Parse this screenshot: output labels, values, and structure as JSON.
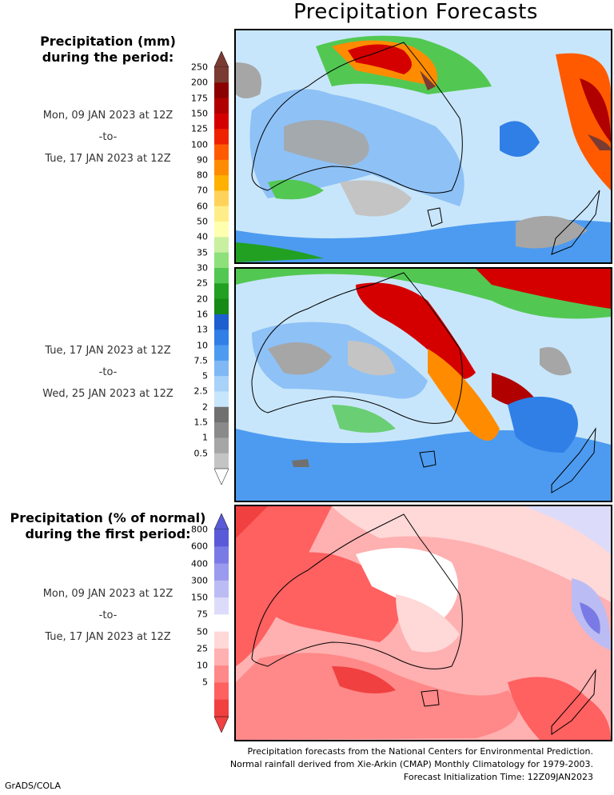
{
  "title": "Precipitation Forecasts",
  "legend_mm": {
    "heading_line1": "Precipitation (mm)",
    "heading_line2": "during the period:",
    "ticks": [
      "250",
      "200",
      "175",
      "150",
      "125",
      "100",
      "90",
      "80",
      "70",
      "60",
      "50",
      "40",
      "35",
      "30",
      "25",
      "20",
      "16",
      "13",
      "10",
      "7.5",
      "5",
      "2.5",
      "2",
      "1.5",
      "1",
      "0.5"
    ],
    "colors": [
      "#7a3b32",
      "#8b0000",
      "#b00000",
      "#d40000",
      "#ee2200",
      "#ff5a00",
      "#ff8c00",
      "#ffb000",
      "#ffd35a",
      "#ffee88",
      "#ffffb0",
      "#c8f0a0",
      "#8ee07a",
      "#52c852",
      "#22a022",
      "#158b15",
      "#1d5fcf",
      "#2f7fe6",
      "#4d9bf0",
      "#7fb8f5",
      "#a8d2f8",
      "#c8e6fb",
      "#707070",
      "#8a8a8a",
      "#a6a6a6",
      "#c4c4c4"
    ]
  },
  "period1": {
    "start": "Mon, 09 JAN 2023 at 12Z",
    "sep": "-to-",
    "end": "Tue, 17 JAN 2023 at 12Z"
  },
  "period2": {
    "start": "Tue, 17 JAN 2023 at 12Z",
    "sep": "-to-",
    "end": "Wed, 25 JAN 2023 at 12Z"
  },
  "legend_pct": {
    "heading_line1": "Precipitation (% of normal)",
    "heading_line2": "during the first period:",
    "ticks": [
      "800",
      "600",
      "400",
      "300",
      "150",
      "75",
      "50",
      "25",
      "10",
      "5"
    ],
    "colors": [
      "#5a5ad8",
      "#7a7ae6",
      "#9a9aee",
      "#bcbcf4",
      "#dcdcfa",
      "#ffffff",
      "#ffd8d8",
      "#ffb0b0",
      "#ff8888",
      "#ff6060",
      "#f04040"
    ]
  },
  "period3": {
    "start": "Mon, 09 JAN 2023 at 12Z",
    "sep": "-to-",
    "end": "Tue, 17 JAN 2023 at 12Z"
  },
  "footer": {
    "line1": "Precipitation forecasts from the National Centers for Environmental Prediction.",
    "line2": "Normal rainfall derived from Xie-Arkin (CMAP) Monthly Climatology for 1979-2003.",
    "line3": "Forecast Initialization Time: 12Z09JAN2023"
  },
  "credit": "GrADS/COLA"
}
